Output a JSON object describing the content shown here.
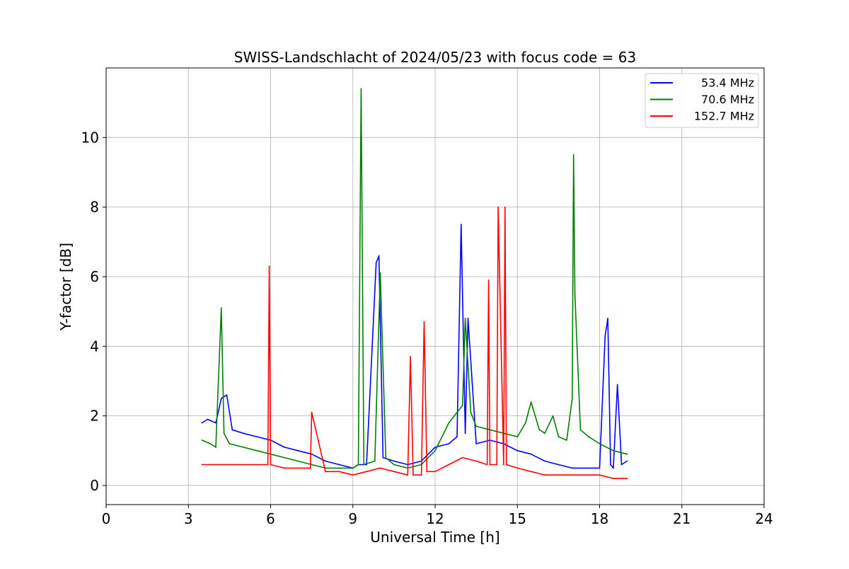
{
  "chart_data": {
    "type": "line",
    "title": "SWISS-Landschlacht of 2024/05/23 with focus code = 63",
    "xlabel": "Universal Time [h]",
    "ylabel": "Y-factor [dB]",
    "xlim": [
      0,
      24
    ],
    "ylim": [
      -0.55,
      12
    ],
    "x_ticks": [
      0,
      3,
      6,
      9,
      12,
      15,
      18,
      21,
      24
    ],
    "x_tick_labels": [
      "0",
      "3",
      "6",
      "9",
      "12",
      "15",
      "18",
      "21",
      "24"
    ],
    "y_ticks": [
      0,
      2,
      4,
      6,
      8,
      10
    ],
    "y_tick_labels": [
      "0",
      "2",
      "4",
      "6",
      "8",
      "10"
    ],
    "grid": true,
    "legend_position": "top-right",
    "series": [
      {
        "name": "53.4 MHz",
        "color": "#0000ff",
        "x": [
          3.5,
          3.7,
          4.0,
          4.2,
          4.4,
          4.6,
          5.0,
          5.5,
          6.0,
          6.5,
          7.0,
          7.5,
          8.0,
          8.5,
          9.0,
          9.2,
          9.5,
          9.85,
          9.95,
          10.1,
          10.5,
          11.0,
          11.5,
          12.0,
          12.5,
          12.8,
          12.95,
          13.1,
          13.2,
          13.5,
          14.0,
          14.5,
          15.0,
          15.5,
          16.0,
          16.5,
          17.0,
          17.5,
          18.0,
          18.2,
          18.3,
          18.4,
          18.5,
          18.65,
          18.8,
          19.0
        ],
        "y": [
          1.8,
          1.9,
          1.8,
          2.5,
          2.6,
          1.6,
          1.5,
          1.4,
          1.3,
          1.1,
          1.0,
          0.9,
          0.7,
          0.6,
          0.5,
          0.6,
          0.6,
          6.4,
          6.6,
          0.8,
          0.7,
          0.6,
          0.7,
          1.1,
          1.2,
          1.4,
          7.5,
          1.5,
          4.8,
          1.2,
          1.3,
          1.2,
          1.0,
          0.9,
          0.7,
          0.6,
          0.5,
          0.5,
          0.5,
          4.3,
          4.8,
          0.6,
          0.5,
          2.9,
          0.6,
          0.7
        ]
      },
      {
        "name": "70.6 MHz",
        "color": "#008000",
        "x": [
          3.5,
          3.8,
          4.0,
          4.2,
          4.3,
          4.5,
          5.0,
          5.5,
          6.0,
          6.5,
          7.0,
          7.5,
          8.0,
          8.5,
          9.0,
          9.2,
          9.3,
          9.4,
          9.8,
          10.0,
          10.2,
          10.5,
          11.0,
          11.5,
          12.0,
          12.5,
          13.0,
          13.1,
          13.3,
          13.5,
          14.0,
          14.5,
          15.0,
          15.3,
          15.5,
          15.8,
          16.0,
          16.3,
          16.5,
          16.8,
          17.0,
          17.05,
          17.1,
          17.3,
          17.6,
          18.0,
          18.5,
          19.0
        ],
        "y": [
          1.3,
          1.2,
          1.1,
          5.1,
          1.5,
          1.2,
          1.1,
          1.0,
          0.9,
          0.8,
          0.7,
          0.6,
          0.5,
          0.5,
          0.5,
          0.6,
          11.4,
          0.6,
          0.7,
          6.1,
          0.8,
          0.6,
          0.5,
          0.6,
          1.0,
          1.8,
          2.3,
          4.8,
          2.1,
          1.7,
          1.6,
          1.5,
          1.4,
          1.8,
          2.4,
          1.6,
          1.5,
          2.0,
          1.4,
          1.3,
          2.5,
          9.5,
          5.5,
          1.6,
          1.4,
          1.2,
          1.0,
          0.9
        ]
      },
      {
        "name": "152.7 MHz",
        "color": "#ff0000",
        "x": [
          3.5,
          4.0,
          4.5,
          5.0,
          5.5,
          5.9,
          5.95,
          6.0,
          6.5,
          7.0,
          7.45,
          7.5,
          8.0,
          8.5,
          9.0,
          9.5,
          10.0,
          10.5,
          11.0,
          11.1,
          11.2,
          11.5,
          11.6,
          11.7,
          12.0,
          12.5,
          13.0,
          13.5,
          13.9,
          13.95,
          14.0,
          14.25,
          14.3,
          14.5,
          14.55,
          14.6,
          15.0,
          15.5,
          16.0,
          16.5,
          17.0,
          17.5,
          18.0,
          18.5,
          19.0
        ],
        "y": [
          0.6,
          0.6,
          0.6,
          0.6,
          0.6,
          0.6,
          6.3,
          0.6,
          0.5,
          0.5,
          0.5,
          2.1,
          0.4,
          0.4,
          0.3,
          0.4,
          0.5,
          0.4,
          0.3,
          3.7,
          0.3,
          0.3,
          4.7,
          0.4,
          0.4,
          0.6,
          0.8,
          0.7,
          0.6,
          5.9,
          0.6,
          0.6,
          8.0,
          0.6,
          8.0,
          0.6,
          0.5,
          0.4,
          0.3,
          0.3,
          0.3,
          0.3,
          0.3,
          0.2,
          0.2
        ]
      }
    ]
  }
}
